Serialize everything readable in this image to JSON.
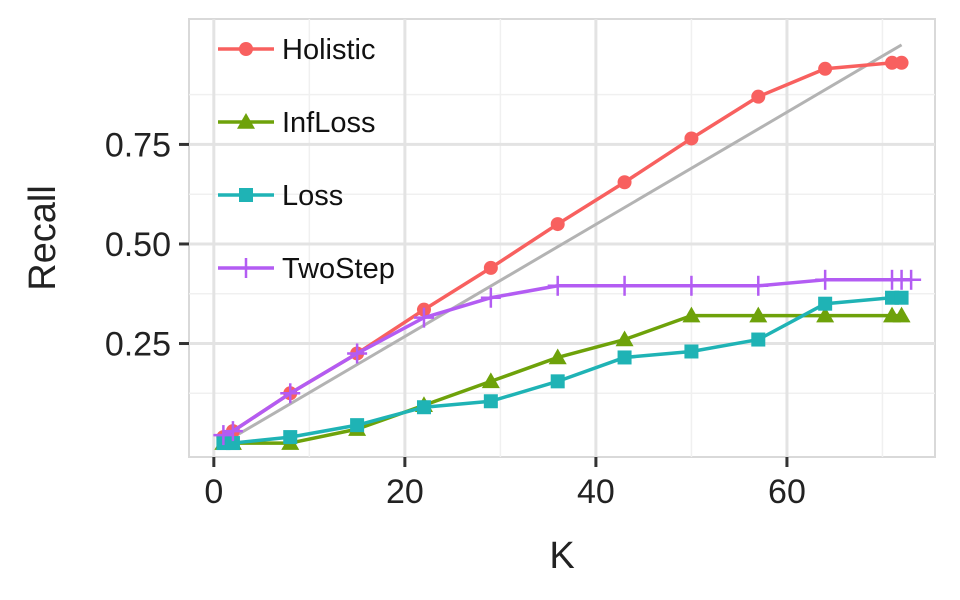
{
  "chart_data": {
    "type": "line",
    "title": "",
    "xlabel": "K",
    "ylabel": "Recall",
    "xlim": [
      -2.6,
      75.5
    ],
    "ylim": [
      -0.035,
      1.065
    ],
    "x_ticks": [
      {
        "value": 0,
        "label": "0"
      },
      {
        "value": 20,
        "label": "20"
      },
      {
        "value": 40,
        "label": "40"
      },
      {
        "value": 60,
        "label": "60"
      }
    ],
    "y_ticks": [
      {
        "value": 0.25,
        "label": "0.25"
      },
      {
        "value": 0.5,
        "label": "0.50"
      },
      {
        "value": 0.75,
        "label": "0.75"
      }
    ],
    "grid": true,
    "legend_position": "top-left",
    "reference_line": {
      "x": [
        1,
        72
      ],
      "y": [
        0.0,
        1.0
      ],
      "color": "#b3b3b3"
    },
    "series": [
      {
        "name": "Holistic",
        "color": "#f8605f",
        "marker": "circle",
        "x": [
          1,
          2,
          8,
          15,
          22,
          29,
          36,
          43,
          50,
          57,
          64,
          71,
          72
        ],
        "y": [
          0.015,
          0.03,
          0.125,
          0.225,
          0.335,
          0.44,
          0.55,
          0.655,
          0.765,
          0.87,
          0.94,
          0.955,
          0.955
        ]
      },
      {
        "name": "InfLoss",
        "color": "#6ea20a",
        "marker": "triangle",
        "x": [
          1,
          2,
          8,
          15,
          22,
          29,
          36,
          43,
          50,
          57,
          64,
          71,
          72
        ],
        "y": [
          0.0,
          0.0,
          0.0,
          0.035,
          0.095,
          0.155,
          0.215,
          0.26,
          0.32,
          0.32,
          0.32,
          0.32,
          0.32
        ]
      },
      {
        "name": "Loss",
        "color": "#1fb3b5",
        "marker": "square",
        "x": [
          1,
          2,
          8,
          15,
          22,
          29,
          36,
          43,
          50,
          57,
          64,
          71,
          72
        ],
        "y": [
          0.0,
          0.0,
          0.015,
          0.045,
          0.09,
          0.105,
          0.155,
          0.215,
          0.23,
          0.26,
          0.35,
          0.365,
          0.365
        ]
      },
      {
        "name": "TwoStep",
        "color": "#b35cf3",
        "marker": "plus",
        "x": [
          1,
          2,
          8,
          15,
          22,
          29,
          36,
          43,
          50,
          57,
          64,
          71,
          72,
          73
        ],
        "y": [
          0.02,
          0.03,
          0.125,
          0.225,
          0.315,
          0.365,
          0.395,
          0.395,
          0.395,
          0.395,
          0.41,
          0.41,
          0.41,
          0.41
        ]
      }
    ]
  }
}
